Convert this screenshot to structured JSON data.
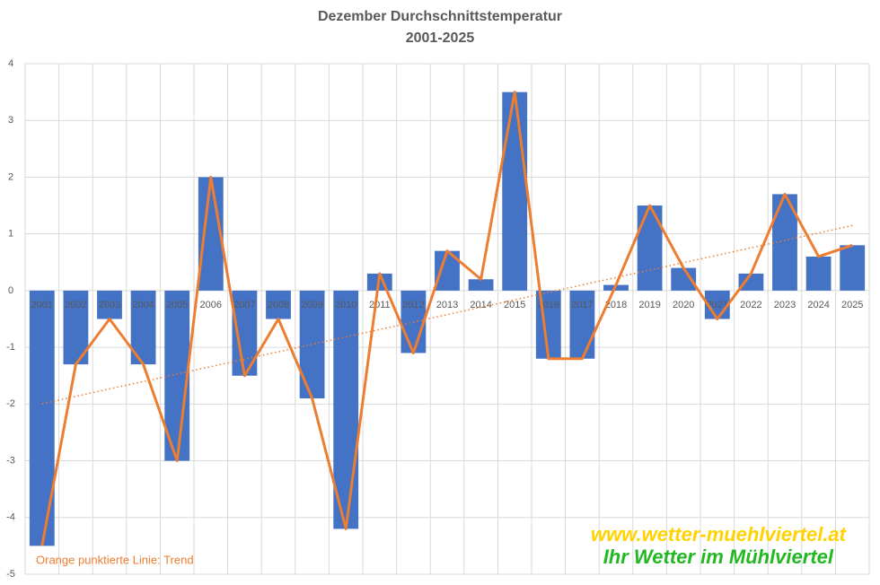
{
  "chart_data": {
    "type": "bar",
    "title": "Dezember Durchschnittstemperatur",
    "subtitle": "2001-2025",
    "categories": [
      "2001",
      "2002",
      "2003",
      "2004",
      "2005",
      "2006",
      "2007",
      "2008",
      "2009",
      "2010",
      "2011",
      "2012",
      "2013",
      "2014",
      "2015",
      "2016",
      "2017",
      "2018",
      "2019",
      "2020",
      "2021",
      "2022",
      "2023",
      "2024",
      "2025"
    ],
    "values": [
      -4.5,
      -1.3,
      -0.5,
      -1.3,
      -3.0,
      2.0,
      -1.5,
      -0.5,
      -1.9,
      -4.2,
      0.3,
      -1.1,
      0.7,
      0.2,
      3.5,
      -1.2,
      -1.2,
      0.1,
      1.5,
      0.4,
      -0.5,
      0.3,
      1.7,
      0.6,
      0.8
    ],
    "color": "#4472c4",
    "line_color": "#ed7d31",
    "line": true,
    "trendline": true,
    "ylim": [
      -5,
      4
    ],
    "yticks": [
      -5,
      -4,
      -3,
      -2,
      -1,
      0,
      1,
      2,
      3,
      4
    ],
    "grid": true,
    "annotations": [
      "Orange punktierte Linie: Trend",
      "www.wetter-muehlviertel.at",
      "Ihr Wetter im Mühlviertel"
    ]
  }
}
